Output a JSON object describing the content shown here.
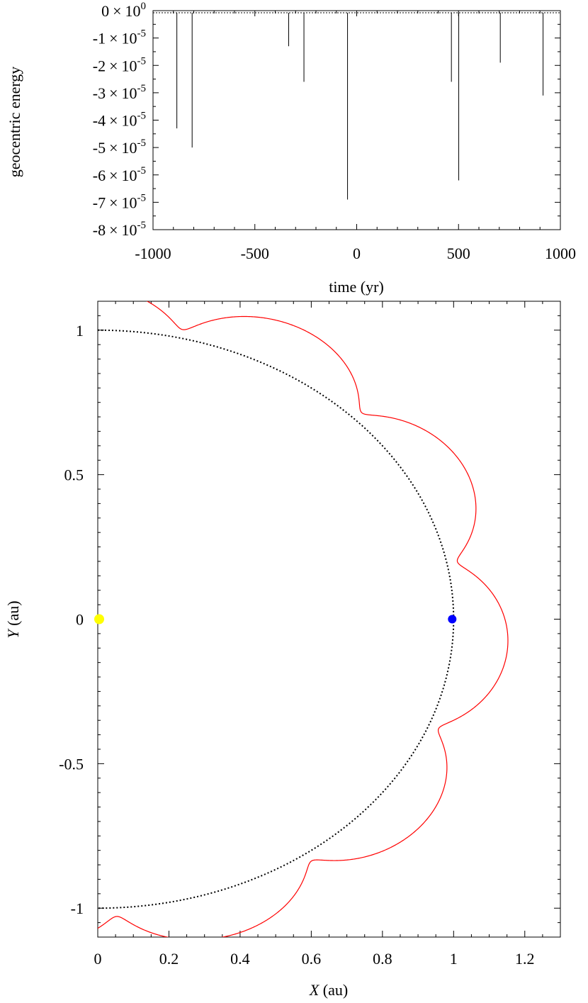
{
  "chart_data": [
    {
      "type": "line",
      "xlabel": "time (yr)",
      "ylabel": "geocentric energy",
      "xlim": [
        -1000,
        1000
      ],
      "ylim": [
        -8e-05,
        0
      ],
      "x_ticks": [
        -1000,
        -500,
        0,
        500,
        1000
      ],
      "x_tick_labels": [
        "-1000",
        "-500",
        "0",
        "500",
        "1000"
      ],
      "y_ticks": [
        0,
        -1e-05,
        -2e-05,
        -3e-05,
        -4e-05,
        -5e-05,
        -6e-05,
        -7e-05,
        -8e-05
      ],
      "y_tick_mantissas": [
        "0",
        "-1",
        "-2",
        "-3",
        "-4",
        "-5",
        "-6",
        "-7",
        "-8"
      ],
      "y_tick_times": "×",
      "y_tick_base": "10",
      "y_tick_exponents": [
        "0",
        "-5",
        "-5",
        "-5",
        "-5",
        "-5",
        "-5",
        "-5",
        "-5"
      ],
      "baseline": 0,
      "dips": [
        {
          "t": -883,
          "e": -4.3e-05
        },
        {
          "t": -808,
          "e": -5e-05
        },
        {
          "t": -334,
          "e": -1.3e-05
        },
        {
          "t": -259,
          "e": -2.6e-05
        },
        {
          "t": -45,
          "e": -6.9e-05
        },
        {
          "t": 465,
          "e": -2.6e-05
        },
        {
          "t": 501,
          "e": -6.2e-05
        },
        {
          "t": 705,
          "e": -1.9e-05
        },
        {
          "t": 915,
          "e": -3.1e-05
        }
      ]
    },
    {
      "type": "scatter",
      "xlabel_var": "X",
      "xlabel_unit": " (au)",
      "ylabel_var": "Y",
      "ylabel_unit": " (au)",
      "xlim": [
        0,
        1.3
      ],
      "ylim": [
        -1.1,
        1.1
      ],
      "x_ticks": [
        0,
        0.2,
        0.4,
        0.6,
        0.8,
        1.0,
        1.2
      ],
      "x_tick_labels": [
        "0",
        "0.2",
        "0.4",
        "0.6",
        "0.8",
        "1",
        "1.2"
      ],
      "y_ticks": [
        1,
        0.5,
        0,
        -0.5,
        -1
      ],
      "y_tick_labels": [
        "1",
        "0.5",
        "0",
        "-0.5",
        "-1"
      ],
      "colors": {
        "loop": "#ff0000",
        "earth_orbit": "#000000",
        "sun": "#ffff00",
        "earth": "#0000ff"
      },
      "earth_orbit_radius": 1.0,
      "sun": {
        "x": 0,
        "y": 0
      },
      "earth": {
        "x": 1.0,
        "y": 0
      },
      "loop_model": {
        "r0": 1.0,
        "epicycle_radius": 0.063,
        "deferent_radius": 0.093,
        "phase_start": 1.0
      }
    }
  ]
}
